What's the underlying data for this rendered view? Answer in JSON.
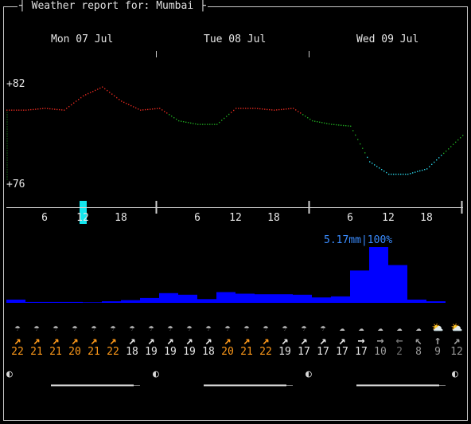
{
  "window": {
    "title": "Weather report for: Mumbai"
  },
  "dates": [
    "Mon 07 Jul",
    "Tue 08 Jul",
    "Wed 09 Jul"
  ],
  "temp_axis": {
    "max_label": "+82",
    "min_label": "+76"
  },
  "hour_ticks": [
    "6",
    "12",
    "18",
    "6",
    "12",
    "18",
    "6",
    "12",
    "18"
  ],
  "precip": {
    "peak_label": "5.17mm|100%"
  },
  "chart_data": [
    {
      "type": "line",
      "title": "",
      "ylabel": "",
      "ylim": [
        76,
        82
      ],
      "x_unit": "hours from Mon 07 Jul 00:00",
      "x": [
        0,
        3,
        6,
        9,
        12,
        15,
        18,
        21,
        24,
        27,
        30,
        33,
        36,
        39,
        42,
        45,
        48,
        51,
        54,
        57,
        60,
        63,
        66,
        69,
        72
      ],
      "values": [
        80.5,
        80.5,
        80.6,
        80.5,
        81.3,
        81.8,
        81.0,
        80.5,
        80.6,
        79.9,
        79.7,
        79.7,
        80.6,
        80.6,
        80.5,
        80.6,
        79.9,
        79.7,
        79.6,
        77.6,
        76.9,
        76.9,
        77.2,
        78.2,
        79.2
      ],
      "colors": {
        "warm": "#e0281e",
        "mild": "#1fa51f",
        "cool": "#2ad2e6"
      },
      "highlight_hour": 12
    },
    {
      "type": "bar",
      "title": "",
      "x_unit": "hours from Mon 07 Jul 00:00",
      "ylabel": "",
      "ylim": [
        0,
        5.17
      ],
      "x": [
        0,
        3,
        6,
        9,
        12,
        15,
        18,
        21,
        24,
        27,
        30,
        33,
        36,
        39,
        42,
        45,
        48,
        51,
        54,
        57,
        60,
        63,
        66,
        69,
        72
      ],
      "values": [
        0.3,
        0.08,
        0.08,
        0.08,
        0.05,
        0.15,
        0.25,
        0.45,
        0.9,
        0.75,
        0.35,
        1.0,
        0.85,
        0.8,
        0.8,
        0.75,
        0.5,
        0.6,
        3.0,
        5.17,
        3.5,
        0.3,
        0.15,
        0,
        0
      ],
      "color": "#0000ff"
    }
  ],
  "hourly": {
    "weather_icons": [
      "partly-cloudy-rain-icon",
      "partly-cloudy-rain-icon",
      "partly-cloudy-rain-icon",
      "partly-cloudy-rain-icon",
      "partly-cloudy-rain-icon",
      "partly-cloudy-rain-icon",
      "partly-cloudy-rain-icon",
      "partly-cloudy-rain-icon",
      "partly-cloudy-rain-icon",
      "partly-cloudy-rain-icon",
      "partly-cloudy-rain-icon",
      "partly-cloudy-rain-icon",
      "partly-cloudy-rain-icon",
      "partly-cloudy-rain-icon",
      "partly-cloudy-rain-icon",
      "partly-cloudy-rain-icon",
      "partly-cloudy-rain-icon",
      "cloud-rain-icon",
      "cloud-rain-icon",
      "cloud-rain-icon",
      "cloud-rain-icon",
      "cloud-rain-icon",
      "partly-cloudy-icon",
      "partly-cloudy-icon",
      "partly-cloudy-icon"
    ],
    "wind_dirs": [
      "↗",
      "↗",
      "↗",
      "↗",
      "↗",
      "↗",
      "↗",
      "↗",
      "↗",
      "↗",
      "↗",
      "↗",
      "↗",
      "↗",
      "↗",
      "↗",
      "↗",
      "↗",
      "→",
      "→",
      "←",
      "↖",
      "↑",
      "↗"
    ],
    "wind_colors": [
      "#ff9a1a",
      "#ff9a1a",
      "#ff9a1a",
      "#ff9a1a",
      "#ff9a1a",
      "#ff9a1a",
      "#e6e6e6",
      "#e6e6e6",
      "#e6e6e6",
      "#e6e6e6",
      "#e6e6e6",
      "#ff9a1a",
      "#ff9a1a",
      "#ff9a1a",
      "#e6e6e6",
      "#e6e6e6",
      "#e6e6e6",
      "#e6e6e6",
      "#e6e6e6",
      "#9a9a9a",
      "#6e6e6e",
      "#9a9a9a",
      "#9a9a9a",
      "#9a9a9a"
    ],
    "wind_speeds": [
      "22",
      "21",
      "21",
      "20",
      "21",
      "22",
      "18",
      "19",
      "19",
      "19",
      "18",
      "20",
      "21",
      "22",
      "19",
      "17",
      "17",
      "17",
      "17",
      "10",
      "2",
      "8",
      "9",
      "12"
    ],
    "moon_phase_glyph": "◐"
  }
}
